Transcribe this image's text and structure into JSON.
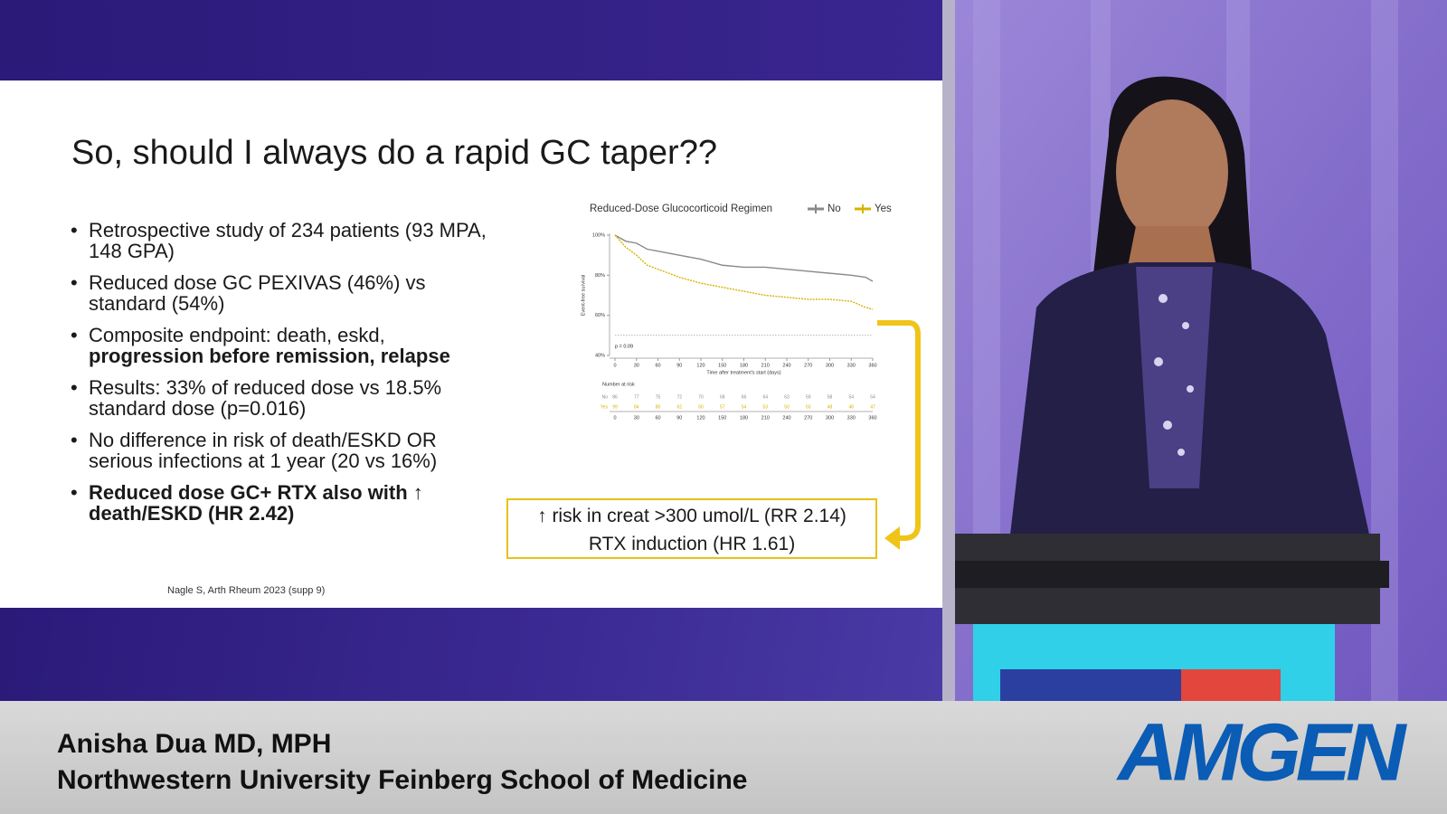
{
  "slide": {
    "title": "So, should I always do a rapid GC taper??",
    "bullets": [
      {
        "text": "Retrospective study of 234 patients (93 MPA, 148 GPA)"
      },
      {
        "text": "Reduced dose GC PEXIVAS (46%) vs standard (54%)"
      },
      {
        "text": "Composite endpoint: death, eskd,",
        "bold": "progression before remission, relapse"
      },
      {
        "text": "Results: 33% of reduced dose vs 18.5% standard dose (p=0.016)"
      },
      {
        "text": "No difference in risk of death/ESKD OR serious infections at 1 year (20 vs 16%)"
      },
      {
        "bold": "Reduced dose GC+ RTX also with ↑ death/ESKD (HR 2.42)"
      }
    ],
    "callout": [
      "↑ risk in creat >300 umol/L (RR 2.14)",
      "RTX induction (HR 1.61)"
    ],
    "citation": "Nagle S, Arth Rheum 2023 (supp 9)",
    "chart": {
      "type": "line",
      "title": "Reduced-Dose Glucocorticoid Regimen",
      "y_label": "Event-free survival",
      "x_label": "Time after treatment's start (days)",
      "annotation": "p = 0.09",
      "reference_y": 50,
      "x": [
        0,
        15,
        30,
        45,
        60,
        90,
        120,
        150,
        180,
        210,
        240,
        270,
        300,
        330,
        350,
        360
      ],
      "series": [
        {
          "name": "No",
          "color": "#8a8a8a",
          "values": [
            100,
            97,
            96,
            93,
            92,
            90,
            88,
            85,
            84,
            84,
            83,
            82,
            81,
            80,
            79,
            77
          ]
        },
        {
          "name": "Yes",
          "color": "#d4b400",
          "values": [
            100,
            94,
            90,
            85,
            83,
            79,
            76,
            74,
            72,
            70,
            69,
            68,
            68,
            67,
            64,
            63
          ]
        }
      ],
      "xlim": [
        0,
        360
      ],
      "xticks": [
        0,
        30,
        60,
        90,
        120,
        150,
        180,
        210,
        240,
        270,
        300,
        330,
        360
      ],
      "ylim": [
        40,
        100
      ],
      "yticks": [
        {
          "value": 40,
          "label": "40%"
        },
        {
          "value": 60,
          "label": "60%"
        },
        {
          "value": 80,
          "label": "80%"
        },
        {
          "value": 100,
          "label": "100%"
        }
      ],
      "risk_table": {
        "title": "Number at risk",
        "rows": [
          {
            "name": "No",
            "values": [
              86,
              77,
              75,
              72,
              70,
              68,
              66,
              64,
              63,
              59,
              58,
              54,
              54
            ]
          },
          {
            "name": "Yes",
            "values": [
              99,
              84,
              80,
              62,
              60,
              57,
              54,
              53,
              50,
              50,
              48,
              46,
              47
            ]
          }
        ]
      }
    }
  },
  "lower_third": {
    "name": "Anisha Dua MD, MPH",
    "affiliation": "Northwestern University Feinberg School of Medicine",
    "logo": "AMGEN"
  }
}
